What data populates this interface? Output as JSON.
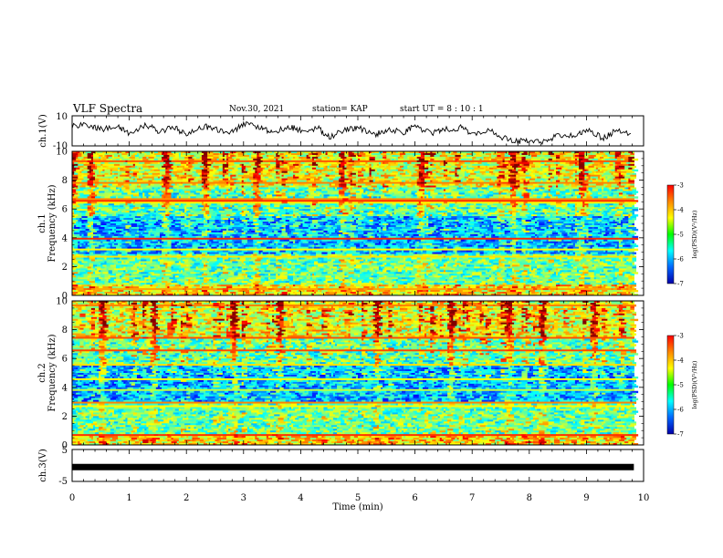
{
  "header": {
    "title": "VLF Spectra",
    "date": "Nov.30, 2021",
    "station": "station= KAP",
    "start_ut": "start UT = 8 : 10 : 1"
  },
  "colorbar": {
    "label": "log(PSD)(V²/Hz)",
    "ticks": [
      -3,
      -4,
      -5,
      -6,
      -7
    ],
    "colors": [
      "#ff0000",
      "#ff8800",
      "#ffff00",
      "#00ff00",
      "#00ffff",
      "#0066ff",
      "#0000aa"
    ]
  },
  "chart_data": [
    {
      "type": "line",
      "name": "ch1-waveform",
      "ylabel": "ch.1(V)",
      "ylim": [
        -10,
        10
      ],
      "yticks": [
        "10",
        "-10"
      ],
      "xlim": [
        0,
        10
      ],
      "x": [
        0,
        0.3,
        0.5,
        0.8,
        1.0,
        1.3,
        1.5,
        1.8,
        2.0,
        2.3,
        2.5,
        2.8,
        3.0,
        3.3,
        3.5,
        3.8,
        4.0,
        4.3,
        4.5,
        4.8,
        5.0,
        5.3,
        5.5,
        5.8,
        6.0,
        6.3,
        6.5,
        6.8,
        7.0,
        7.3,
        7.5,
        7.8,
        8.0,
        8.3,
        8.5,
        8.8,
        9.0,
        9.3,
        9.5,
        9.8
      ],
      "values": [
        3,
        4,
        1,
        3,
        -2,
        4,
        0,
        2,
        -3,
        3,
        1,
        -1,
        5,
        2,
        -1,
        3,
        0,
        2,
        -4,
        1,
        2,
        -3,
        1,
        -1,
        3,
        -2,
        1,
        2,
        -2,
        1,
        -4,
        -7,
        -6,
        -8,
        -2,
        -4,
        1,
        -5,
        0,
        -3
      ]
    },
    {
      "type": "heatmap",
      "name": "ch1-spectrogram",
      "ylabel": "ch.1 Frequency (kHz)",
      "ylim": [
        0,
        10
      ],
      "yticks": [
        "0",
        "2",
        "4",
        "6",
        "8",
        "10"
      ],
      "xlim": [
        0,
        10
      ],
      "zlim": [
        -7,
        -3
      ]
    },
    {
      "type": "heatmap",
      "name": "ch2-spectrogram",
      "ylabel": "ch.2 Frequency (kHz)",
      "ylim": [
        0,
        10
      ],
      "yticks": [
        "0",
        "2",
        "4",
        "6",
        "8",
        "10"
      ],
      "xlim": [
        0,
        10
      ],
      "zlim": [
        -7,
        -3
      ]
    },
    {
      "type": "line",
      "name": "ch3-waveform",
      "ylabel": "ch.3(V)",
      "ylim": [
        -5,
        5
      ],
      "yticks": [
        "5",
        "-5"
      ],
      "xlim": [
        0,
        10
      ],
      "constant_value": -0.5
    }
  ],
  "xaxis": {
    "label": "Time (min)",
    "ticks": [
      "0",
      "1",
      "2",
      "3",
      "4",
      "5",
      "6",
      "7",
      "8",
      "9",
      "10"
    ]
  }
}
